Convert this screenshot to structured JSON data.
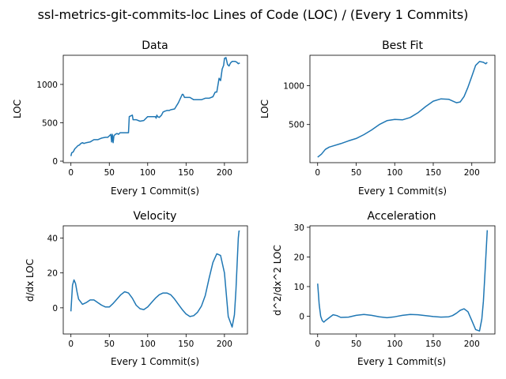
{
  "suptitle": "ssl-metrics-git-commits-loc Lines of Code (LOC) / (Every 1 Commits)",
  "line_color": "#1f77b4",
  "chart_data": [
    {
      "type": "line",
      "title": "Data",
      "xlabel": "Every 1 Commit(s)",
      "ylabel": "LOC",
      "xlim": [
        -10,
        230
      ],
      "ylim": [
        -20,
        1380
      ],
      "xticks": [
        0,
        50,
        100,
        150,
        200
      ],
      "yticks": [
        0,
        500,
        1000
      ],
      "x": [
        0,
        1,
        3,
        5,
        7,
        9,
        11,
        13,
        15,
        17,
        20,
        25,
        30,
        35,
        40,
        45,
        48,
        50,
        52,
        53,
        54,
        55,
        56,
        57,
        58,
        60,
        62,
        64,
        66,
        68,
        70,
        75,
        76,
        80,
        81,
        85,
        90,
        95,
        100,
        105,
        110,
        111,
        112,
        113,
        115,
        118,
        120,
        122,
        125,
        128,
        130,
        135,
        140,
        145,
        146,
        148,
        150,
        155,
        160,
        165,
        170,
        175,
        180,
        185,
        188,
        190,
        193,
        195,
        197,
        199,
        200,
        202,
        204,
        206,
        208,
        210,
        212,
        214,
        216,
        218,
        220
      ],
      "y": [
        65,
        110,
        120,
        160,
        180,
        200,
        210,
        230,
        240,
        230,
        240,
        250,
        280,
        280,
        300,
        310,
        310,
        330,
        350,
        250,
        350,
        240,
        330,
        340,
        350,
        360,
        350,
        370,
        370,
        370,
        370,
        370,
        580,
        600,
        540,
        540,
        520,
        530,
        580,
        580,
        580,
        560,
        600,
        580,
        570,
        600,
        640,
        650,
        660,
        660,
        670,
        680,
        760,
        870,
        870,
        830,
        830,
        830,
        800,
        800,
        800,
        820,
        820,
        840,
        900,
        900,
        1080,
        1050,
        1200,
        1250,
        1340,
        1350,
        1260,
        1240,
        1280,
        1300,
        1300,
        1300,
        1290,
        1270,
        1280
      ]
    },
    {
      "type": "line",
      "title": "Best Fit",
      "xlabel": "Every 1 Commit(s)",
      "ylabel": "LOC",
      "xlim": [
        -10,
        230
      ],
      "ylim": [
        10,
        1390
      ],
      "xticks": [
        0,
        50,
        100,
        150,
        200
      ],
      "yticks": [
        500,
        1000
      ],
      "x": [
        0,
        5,
        10,
        15,
        20,
        30,
        40,
        50,
        60,
        70,
        80,
        90,
        100,
        110,
        120,
        130,
        140,
        150,
        160,
        170,
        180,
        185,
        190,
        195,
        200,
        205,
        210,
        215,
        218,
        220
      ],
      "y": [
        80,
        120,
        180,
        210,
        225,
        255,
        290,
        320,
        370,
        430,
        500,
        550,
        565,
        560,
        590,
        650,
        730,
        800,
        830,
        825,
        780,
        790,
        860,
        980,
        1120,
        1260,
        1310,
        1300,
        1280,
        1300
      ]
    },
    {
      "type": "line",
      "title": "Velocity",
      "xlabel": "Every 1 Commit(s)",
      "ylabel": "d/dx LOC",
      "xlim": [
        -10,
        230
      ],
      "ylim": [
        -15,
        47
      ],
      "xticks": [
        0,
        50,
        100,
        150,
        200
      ],
      "yticks": [
        0,
        20,
        40
      ],
      "x": [
        0,
        2,
        4,
        6,
        8,
        10,
        15,
        20,
        25,
        30,
        35,
        40,
        45,
        50,
        55,
        60,
        65,
        70,
        75,
        80,
        85,
        90,
        95,
        100,
        105,
        110,
        115,
        120,
        125,
        130,
        135,
        140,
        145,
        150,
        155,
        160,
        165,
        170,
        175,
        180,
        185,
        190,
        195,
        200,
        205,
        210,
        213,
        215,
        217,
        218,
        219,
        220
      ],
      "y": [
        -2,
        13,
        16,
        14,
        9,
        5,
        2,
        3,
        4.5,
        4.5,
        3,
        1.5,
        0.5,
        0.5,
        2.5,
        5,
        7.5,
        9.2,
        8.5,
        5.5,
        1.5,
        -0.5,
        -1,
        0.5,
        3,
        5.5,
        7.5,
        8.5,
        8.5,
        7.5,
        5,
        2,
        -1,
        -3.5,
        -5,
        -4.5,
        -2.5,
        1,
        7,
        17,
        26,
        31,
        30,
        20,
        -5,
        -11,
        -4,
        10,
        30,
        40,
        44,
        44
      ]
    },
    {
      "type": "line",
      "title": "Acceleration",
      "xlabel": "Every 1 Commit(s)",
      "ylabel": "d^2/dx^2 LOC",
      "xlim": [
        -10,
        230
      ],
      "ylim": [
        -6,
        30.5
      ],
      "xticks": [
        0,
        50,
        100,
        150,
        200
      ],
      "yticks": [
        0,
        10,
        20,
        30
      ],
      "x": [
        0,
        2,
        4,
        6,
        8,
        10,
        15,
        20,
        25,
        30,
        40,
        50,
        60,
        70,
        80,
        90,
        100,
        110,
        120,
        130,
        140,
        150,
        160,
        170,
        175,
        180,
        185,
        190,
        195,
        200,
        205,
        210,
        213,
        215,
        217,
        220
      ],
      "y": [
        11,
        4,
        0,
        -1.5,
        -2,
        -1.5,
        -0.5,
        0.5,
        0.2,
        -0.4,
        -0.3,
        0.3,
        0.6,
        0.3,
        -0.2,
        -0.5,
        -0.2,
        0.3,
        0.6,
        0.5,
        0.2,
        -0.1,
        -0.3,
        -0.2,
        0.2,
        1,
        2,
        2.5,
        1.5,
        -1.5,
        -4.5,
        -5,
        -1,
        5,
        14,
        29
      ]
    }
  ]
}
